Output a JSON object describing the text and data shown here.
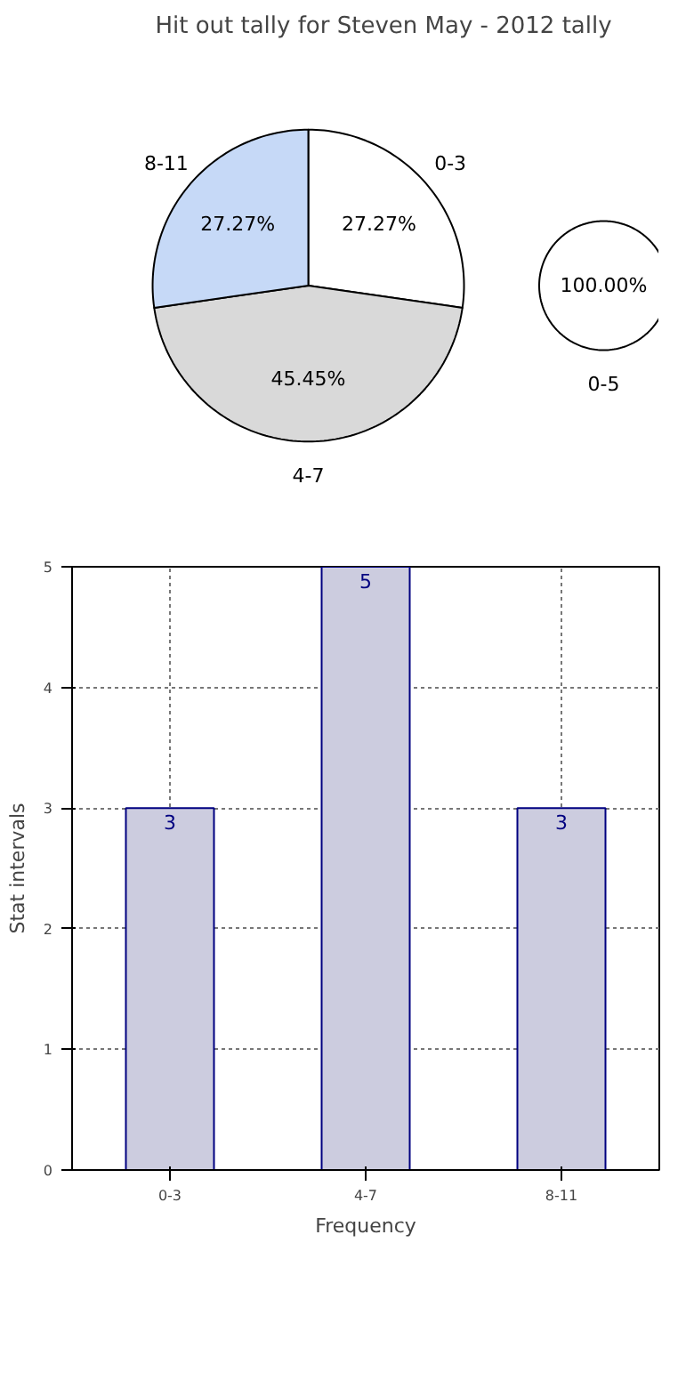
{
  "chart_data": [
    {
      "type": "pie",
      "title": "Hit out tally for Steven May - 2012 tally",
      "categories": [
        "0-3",
        "4-7",
        "8-11"
      ],
      "values": [
        27.27,
        45.45,
        27.27
      ],
      "colors": [
        "#ffffff",
        "#d9d9d9",
        "#c6d9f7"
      ],
      "value_labels": [
        "27.27%",
        "45.45%",
        "27.27%"
      ],
      "legend": false
    },
    {
      "type": "pie",
      "categories": [
        "0-5"
      ],
      "values": [
        100
      ],
      "colors": [
        "#ffffff"
      ],
      "value_labels": [
        "100.00%"
      ],
      "legend": false
    },
    {
      "type": "bar",
      "categories": [
        "0-3",
        "4-7",
        "8-11"
      ],
      "values": [
        3,
        5,
        3
      ],
      "color": "#ccccdf",
      "xlabel": "Frequency",
      "ylabel": "Stat intervals",
      "ylim": [
        0,
        5
      ],
      "yticks": [
        0,
        1,
        2,
        3,
        4,
        5
      ],
      "grid": true,
      "data_labels": true,
      "legend": false
    }
  ]
}
